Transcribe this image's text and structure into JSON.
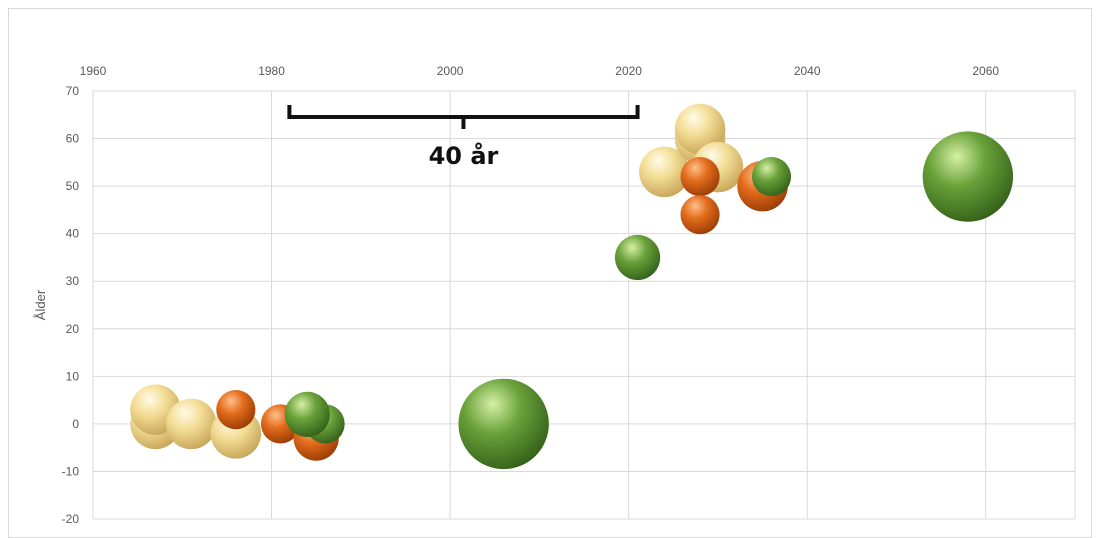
{
  "chart_data": {
    "type": "bubble",
    "title": "",
    "xlabel": "",
    "ylabel": "Ålder",
    "xlim": [
      1960,
      2070
    ],
    "ylim": [
      -20,
      70
    ],
    "x_axis_position": "top",
    "x_ticks": [
      "1960",
      "1980",
      "2000",
      "2020",
      "2040",
      "2060"
    ],
    "y_ticks": [
      "70",
      "60",
      "50",
      "40",
      "30",
      "20",
      "10",
      "0",
      "-10",
      "-20"
    ],
    "grid": true,
    "colors": {
      "cream": "#f3dd96",
      "orange": "#e36c1c",
      "green": "#6aa13a"
    },
    "annotation": {
      "text": "40 år",
      "x_start": 1982,
      "x_end": 2021,
      "y": 66
    },
    "series": [
      {
        "color_key": "cream",
        "points": [
          {
            "x": 1967,
            "y": 0,
            "size": 5
          },
          {
            "x": 1967,
            "y": 3,
            "size": 5
          },
          {
            "x": 1971,
            "y": 0,
            "size": 5
          },
          {
            "x": 1976,
            "y": -2,
            "size": 5
          },
          {
            "x": 2024,
            "y": 53,
            "size": 5
          },
          {
            "x": 2028,
            "y": 60,
            "size": 5
          },
          {
            "x": 2028,
            "y": 62,
            "size": 5
          },
          {
            "x": 2030,
            "y": 54,
            "size": 5
          }
        ]
      },
      {
        "color_key": "orange",
        "points": [
          {
            "x": 1976,
            "y": 3,
            "size": 3
          },
          {
            "x": 1981,
            "y": 0,
            "size": 3
          },
          {
            "x": 1985,
            "y": -3,
            "size": 4
          },
          {
            "x": 2028,
            "y": 52,
            "size": 3
          },
          {
            "x": 2028,
            "y": 44,
            "size": 3
          },
          {
            "x": 2035,
            "y": 50,
            "size": 5
          }
        ]
      },
      {
        "color_key": "green",
        "points": [
          {
            "x": 1986,
            "y": 0,
            "size": 3
          },
          {
            "x": 1984,
            "y": 2,
            "size": 4
          },
          {
            "x": 2006,
            "y": 0,
            "size": 16
          },
          {
            "x": 2021,
            "y": 35,
            "size": 4
          },
          {
            "x": 2036,
            "y": 52,
            "size": 3
          },
          {
            "x": 2058,
            "y": 52,
            "size": 16
          }
        ]
      }
    ]
  }
}
